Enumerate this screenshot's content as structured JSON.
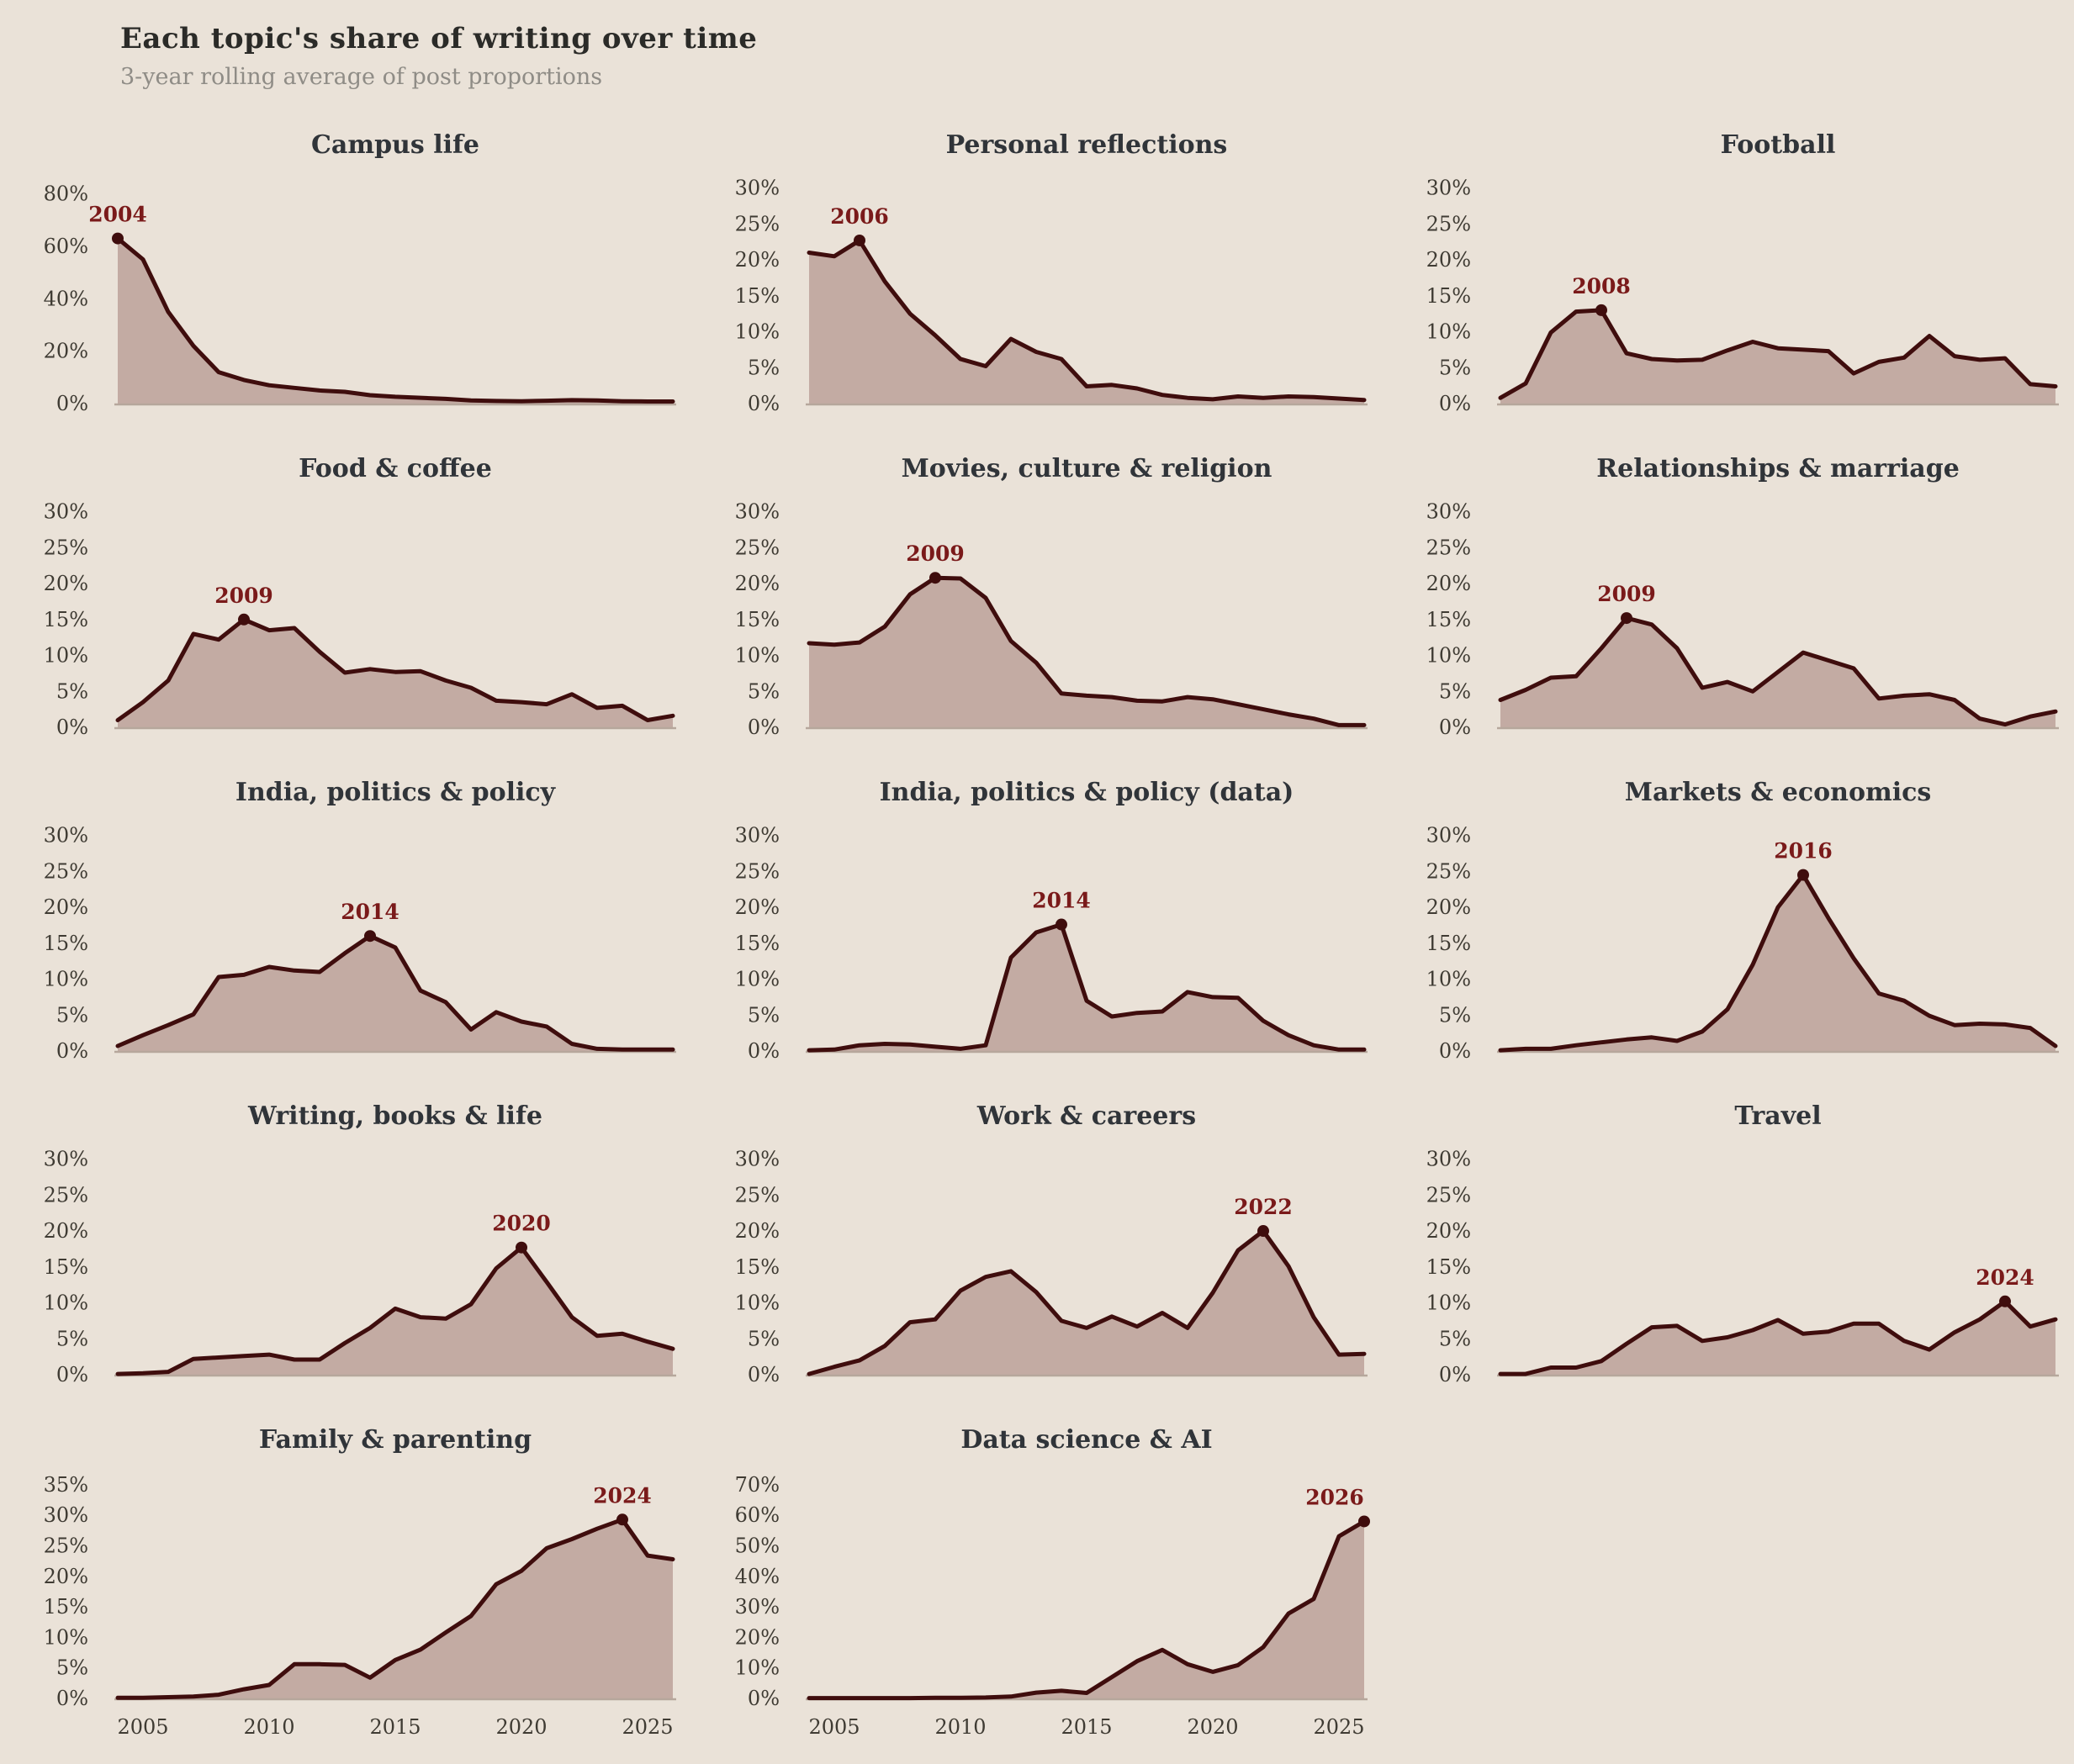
{
  "header": {
    "title": "Each topic's share of writing over time",
    "subtitle": "3-year rolling average of post proportions"
  },
  "colors": {
    "background": "#eae2d8",
    "line": "#3f0d0d",
    "fill": "#c3aba3",
    "baseline": "#b6a79c",
    "peak_label": "#7a1a1a",
    "chart_title": "#303439",
    "tick_label": "#3f3b33",
    "page_title": "#2b2b28",
    "page_subtitle": "#8f8c86"
  },
  "chart_data": [
    {
      "type": "area",
      "title": "Campus life",
      "x": [
        2004,
        2005,
        2006,
        2007,
        2008,
        2009,
        2010,
        2011,
        2012,
        2013,
        2014,
        2015,
        2016,
        2017,
        2018,
        2019,
        2020,
        2021,
        2022,
        2023,
        2024,
        2025,
        2026
      ],
      "values": [
        63,
        55,
        35,
        22,
        12,
        9,
        7,
        6,
        5,
        4.5,
        3.2,
        2.6,
        2.2,
        1.8,
        1.2,
        1.0,
        0.9,
        1.1,
        1.3,
        1.2,
        0.9,
        0.8,
        0.8
      ],
      "peak_year": 2004,
      "peak_value": 63,
      "y_ticks": [
        0,
        20,
        40,
        60,
        80
      ],
      "ylim": [
        0,
        85
      ],
      "x_ticks": null
    },
    {
      "type": "area",
      "title": "Personal reflections",
      "x": [
        2004,
        2005,
        2006,
        2007,
        2008,
        2009,
        2010,
        2011,
        2012,
        2013,
        2014,
        2015,
        2016,
        2017,
        2018,
        2019,
        2020,
        2021,
        2022,
        2023,
        2024,
        2025,
        2026
      ],
      "values": [
        21,
        20.5,
        22.7,
        17,
        12.5,
        9.5,
        6.2,
        5.2,
        9,
        7.2,
        6.2,
        2.4,
        2.6,
        2.1,
        1.2,
        0.8,
        0.6,
        1.0,
        0.8,
        1.0,
        0.9,
        0.7,
        0.5
      ],
      "peak_year": 2006,
      "peak_value": 22.7,
      "y_ticks": [
        0,
        5,
        10,
        15,
        20,
        25,
        30
      ],
      "ylim": [
        0,
        31
      ],
      "x_ticks": null
    },
    {
      "type": "area",
      "title": "Football",
      "x": [
        2004,
        2005,
        2006,
        2007,
        2008,
        2009,
        2010,
        2011,
        2012,
        2013,
        2014,
        2015,
        2016,
        2017,
        2018,
        2019,
        2020,
        2021,
        2022,
        2023,
        2024,
        2025,
        2026
      ],
      "values": [
        0.8,
        2.8,
        9.9,
        12.8,
        13.0,
        7.0,
        6.2,
        6.0,
        6.1,
        7.4,
        8.6,
        7.7,
        7.5,
        7.3,
        4.2,
        5.8,
        6.4,
        9.4,
        6.6,
        6.1,
        6.3,
        2.7,
        2.4
      ],
      "peak_year": 2008,
      "peak_value": 13.0,
      "y_ticks": [
        0,
        5,
        10,
        15,
        20,
        25,
        30
      ],
      "ylim": [
        0,
        31
      ],
      "x_ticks": null
    },
    {
      "type": "area",
      "title": "Food & coffee",
      "x": [
        2004,
        2005,
        2006,
        2007,
        2008,
        2009,
        2010,
        2011,
        2012,
        2013,
        2014,
        2015,
        2016,
        2017,
        2018,
        2019,
        2020,
        2021,
        2022,
        2023,
        2024,
        2025,
        2026
      ],
      "values": [
        1.0,
        3.5,
        6.5,
        13.0,
        12.2,
        15.0,
        13.5,
        13.8,
        10.5,
        7.6,
        8.1,
        7.7,
        7.8,
        6.5,
        5.5,
        3.7,
        3.5,
        3.2,
        4.6,
        2.7,
        3.0,
        1.0,
        1.6
      ],
      "peak_year": 2009,
      "peak_value": 15.0,
      "y_ticks": [
        0,
        5,
        10,
        15,
        20,
        25,
        30
      ],
      "ylim": [
        0,
        31
      ],
      "x_ticks": null
    },
    {
      "type": "area",
      "title": "Movies, culture & religion",
      "x": [
        2004,
        2005,
        2006,
        2007,
        2008,
        2009,
        2010,
        2011,
        2012,
        2013,
        2014,
        2015,
        2016,
        2017,
        2018,
        2019,
        2020,
        2021,
        2022,
        2023,
        2024,
        2025,
        2026
      ],
      "values": [
        11.7,
        11.5,
        11.8,
        14.0,
        18.5,
        20.8,
        20.7,
        18.0,
        12.0,
        9.0,
        4.7,
        4.4,
        4.2,
        3.7,
        3.6,
        4.2,
        3.9,
        3.2,
        2.5,
        1.8,
        1.2,
        0.3,
        0.3
      ],
      "peak_year": 2009,
      "peak_value": 20.8,
      "y_ticks": [
        0,
        5,
        10,
        15,
        20,
        25,
        30
      ],
      "ylim": [
        0,
        31
      ],
      "x_ticks": null
    },
    {
      "type": "area",
      "title": "Relationships & marriage",
      "x": [
        2004,
        2005,
        2006,
        2007,
        2008,
        2009,
        2010,
        2011,
        2012,
        2013,
        2014,
        2015,
        2016,
        2017,
        2018,
        2019,
        2020,
        2021,
        2022,
        2023,
        2024,
        2025,
        2026
      ],
      "values": [
        3.8,
        5.2,
        6.9,
        7.1,
        11.0,
        15.2,
        14.3,
        11.0,
        5.5,
        6.3,
        5.0,
        7.7,
        10.4,
        9.3,
        8.2,
        4.0,
        4.4,
        4.6,
        3.8,
        1.2,
        0.4,
        1.5,
        2.2
      ],
      "peak_year": 2009,
      "peak_value": 15.2,
      "y_ticks": [
        0,
        5,
        10,
        15,
        20,
        25,
        30
      ],
      "ylim": [
        0,
        31
      ],
      "x_ticks": null
    },
    {
      "type": "area",
      "title": "India, politics & policy",
      "x": [
        2004,
        2005,
        2006,
        2007,
        2008,
        2009,
        2010,
        2011,
        2012,
        2013,
        2014,
        2015,
        2016,
        2017,
        2018,
        2019,
        2020,
        2021,
        2022,
        2023,
        2024,
        2025,
        2026
      ],
      "values": [
        0.7,
        2.2,
        3.6,
        5.1,
        10.3,
        10.6,
        11.7,
        11.2,
        11.0,
        13.6,
        16.0,
        14.4,
        8.4,
        6.8,
        3.0,
        5.4,
        4.1,
        3.4,
        1.0,
        0.3,
        0.2,
        0.2,
        0.2
      ],
      "peak_year": 2014,
      "peak_value": 16.0,
      "y_ticks": [
        0,
        5,
        10,
        15,
        20,
        25,
        30
      ],
      "ylim": [
        0,
        31
      ],
      "x_ticks": null
    },
    {
      "type": "area",
      "title": "India, politics & policy (data)",
      "x": [
        2004,
        2005,
        2006,
        2007,
        2008,
        2009,
        2010,
        2011,
        2012,
        2013,
        2014,
        2015,
        2016,
        2017,
        2018,
        2019,
        2020,
        2021,
        2022,
        2023,
        2024,
        2025,
        2026
      ],
      "values": [
        0.1,
        0.2,
        0.8,
        1.0,
        0.9,
        0.6,
        0.3,
        0.8,
        13.0,
        16.5,
        17.6,
        7.0,
        4.8,
        5.3,
        5.5,
        8.2,
        7.5,
        7.4,
        4.2,
        2.2,
        0.8,
        0.2,
        0.2
      ],
      "peak_year": 2014,
      "peak_value": 17.6,
      "y_ticks": [
        0,
        5,
        10,
        15,
        20,
        25,
        30
      ],
      "ylim": [
        0,
        31
      ],
      "x_ticks": null
    },
    {
      "type": "area",
      "title": "Markets & economics",
      "x": [
        2004,
        2005,
        2006,
        2007,
        2008,
        2009,
        2010,
        2011,
        2012,
        2013,
        2014,
        2015,
        2016,
        2017,
        2018,
        2019,
        2020,
        2021,
        2022,
        2023,
        2024,
        2025,
        2026
      ],
      "values": [
        0.1,
        0.3,
        0.3,
        0.8,
        1.2,
        1.6,
        1.9,
        1.4,
        2.7,
        5.8,
        12.0,
        20.0,
        24.5,
        18.5,
        12.9,
        8.0,
        7.0,
        4.9,
        3.6,
        3.8,
        3.7,
        3.2,
        0.7
      ],
      "peak_year": 2016,
      "peak_value": 24.5,
      "y_ticks": [
        0,
        5,
        10,
        15,
        20,
        25,
        30
      ],
      "ylim": [
        0,
        31
      ],
      "x_ticks": null
    },
    {
      "type": "area",
      "title": "Writing, books & life",
      "x": [
        2004,
        2005,
        2006,
        2007,
        2008,
        2009,
        2010,
        2011,
        2012,
        2013,
        2014,
        2015,
        2016,
        2017,
        2018,
        2019,
        2020,
        2021,
        2022,
        2023,
        2024,
        2025,
        2026
      ],
      "values": [
        0.1,
        0.2,
        0.4,
        2.2,
        2.4,
        2.6,
        2.8,
        2.1,
        2.1,
        4.4,
        6.5,
        9.2,
        8.0,
        7.8,
        9.8,
        14.8,
        17.7,
        12.9,
        8.0,
        5.4,
        5.7,
        4.6,
        3.6
      ],
      "peak_year": 2020,
      "peak_value": 17.7,
      "y_ticks": [
        0,
        5,
        10,
        15,
        20,
        25,
        30
      ],
      "ylim": [
        0,
        31
      ],
      "x_ticks": null
    },
    {
      "type": "area",
      "title": "Work & careers",
      "x": [
        2004,
        2005,
        2006,
        2007,
        2008,
        2009,
        2010,
        2011,
        2012,
        2013,
        2014,
        2015,
        2016,
        2017,
        2018,
        2019,
        2020,
        2021,
        2022,
        2023,
        2024,
        2025,
        2026
      ],
      "values": [
        0.1,
        1.1,
        2.0,
        4.0,
        7.3,
        7.7,
        11.7,
        13.6,
        14.4,
        11.5,
        7.5,
        6.5,
        8.1,
        6.7,
        8.6,
        6.5,
        11.4,
        17.3,
        20.0,
        15.1,
        8.0,
        2.8,
        2.9
      ],
      "peak_year": 2022,
      "peak_value": 20.0,
      "y_ticks": [
        0,
        5,
        10,
        15,
        20,
        25,
        30
      ],
      "ylim": [
        0,
        31
      ],
      "x_ticks": null
    },
    {
      "type": "area",
      "title": "Travel",
      "x": [
        2004,
        2005,
        2006,
        2007,
        2008,
        2009,
        2010,
        2011,
        2012,
        2013,
        2014,
        2015,
        2016,
        2017,
        2018,
        2019,
        2020,
        2021,
        2022,
        2023,
        2024,
        2025,
        2026
      ],
      "values": [
        0.1,
        0.1,
        1.0,
        1.0,
        1.9,
        4.3,
        6.6,
        6.8,
        4.7,
        5.2,
        6.2,
        7.6,
        5.7,
        6.0,
        7.1,
        7.1,
        4.7,
        3.5,
        5.9,
        7.7,
        10.2,
        6.7,
        7.7
      ],
      "peak_year": 2024,
      "peak_value": 10.2,
      "y_ticks": [
        0,
        5,
        10,
        15,
        20,
        25,
        30
      ],
      "ylim": [
        0,
        31
      ],
      "x_ticks": null
    },
    {
      "type": "area",
      "title": "Family & parenting",
      "x": [
        2004,
        2005,
        2006,
        2007,
        2008,
        2009,
        2010,
        2011,
        2012,
        2013,
        2014,
        2015,
        2016,
        2017,
        2018,
        2019,
        2020,
        2021,
        2022,
        2023,
        2024,
        2025,
        2026
      ],
      "values": [
        0.1,
        0.1,
        0.2,
        0.3,
        0.6,
        1.5,
        2.2,
        5.6,
        5.6,
        5.5,
        3.4,
        6.3,
        8.0,
        10.8,
        13.5,
        18.7,
        20.9,
        24.6,
        26.1,
        27.8,
        29.3,
        23.4,
        22.8
      ],
      "peak_year": 2024,
      "peak_value": 29.3,
      "y_ticks": [
        0,
        5,
        10,
        15,
        20,
        25,
        30,
        35
      ],
      "ylim": [
        0,
        36.5
      ],
      "x_ticks": [
        2005,
        2010,
        2015,
        2020,
        2025
      ]
    },
    {
      "type": "area",
      "title": "Data science & AI",
      "x": [
        2004,
        2005,
        2006,
        2007,
        2008,
        2009,
        2010,
        2011,
        2012,
        2013,
        2014,
        2015,
        2016,
        2017,
        2018,
        2019,
        2020,
        2021,
        2022,
        2023,
        2024,
        2025,
        2026
      ],
      "values": [
        0.1,
        0.1,
        0.1,
        0.1,
        0.1,
        0.2,
        0.2,
        0.3,
        0.6,
        1.9,
        2.5,
        1.8,
        7.0,
        12.2,
        15.9,
        11.2,
        8.7,
        10.9,
        16.8,
        27.8,
        32.6,
        53.1,
        58.0
      ],
      "peak_year": 2026,
      "peak_value": 58.0,
      "y_ticks": [
        0,
        10,
        20,
        30,
        40,
        50,
        60,
        70
      ],
      "ylim": [
        0,
        73
      ],
      "x_ticks": [
        2005,
        2010,
        2015,
        2020,
        2025
      ]
    }
  ]
}
